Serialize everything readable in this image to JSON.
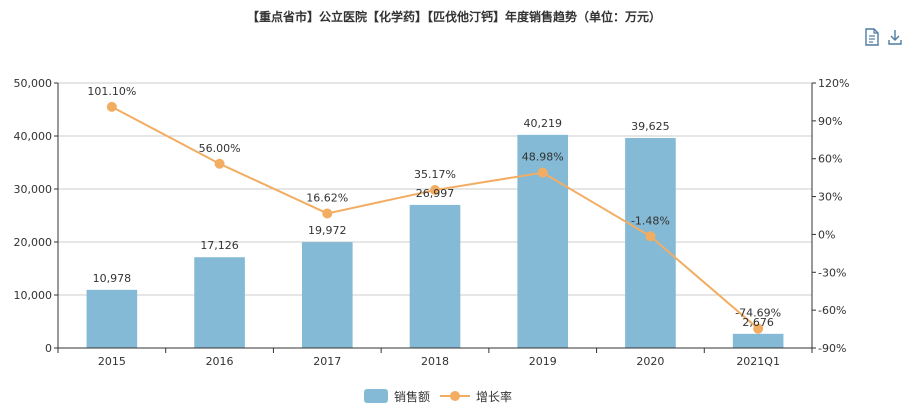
{
  "title": "【重点省市】公立医院【化学药】【匹伐他汀钙】年度销售趋势（单位：万元）",
  "toolbar": {
    "data_view_icon": "document-icon",
    "download_icon": "download-icon"
  },
  "colors": {
    "bar": "#84bad5",
    "line": "#f2ad63",
    "grid": "#cccccc",
    "axis": "#333333"
  },
  "chart_data": {
    "type": "bar",
    "categories": [
      "2015",
      "2016",
      "2017",
      "2018",
      "2019",
      "2020",
      "2021Q1"
    ],
    "series": [
      {
        "name": "销售额",
        "type": "bar",
        "axis": "left",
        "values": [
          10978,
          17126,
          19972,
          26997,
          40219,
          39625,
          2676
        ],
        "labels": [
          "10,978",
          "17,126",
          "19,972",
          "26,997",
          "40,219",
          "39,625",
          "2,676"
        ]
      },
      {
        "name": "增长率",
        "type": "line",
        "axis": "right",
        "values": [
          101.1,
          56.0,
          16.62,
          35.17,
          48.98,
          -1.48,
          -74.69
        ],
        "labels": [
          "101.10%",
          "56.00%",
          "16.62%",
          "35.17%",
          "48.98%",
          "-1.48%",
          "-74.69%"
        ]
      }
    ],
    "y_left": {
      "ylim": [
        0,
        50000
      ],
      "ticks": [
        0,
        10000,
        20000,
        30000,
        40000,
        50000
      ],
      "tick_labels": [
        "0",
        "10,000",
        "20,000",
        "30,000",
        "40,000",
        "50,000"
      ]
    },
    "y_right": {
      "ylim": [
        -90,
        120
      ],
      "ticks": [
        -90,
        -60,
        -30,
        0,
        30,
        60,
        90,
        120
      ],
      "tick_labels": [
        "-90%",
        "-60%",
        "-30%",
        "0%",
        "30%",
        "60%",
        "90%",
        "120%"
      ]
    },
    "legend": {
      "position": "bottom-center",
      "entries": [
        "销售额",
        "增长率"
      ]
    },
    "grid": true
  }
}
